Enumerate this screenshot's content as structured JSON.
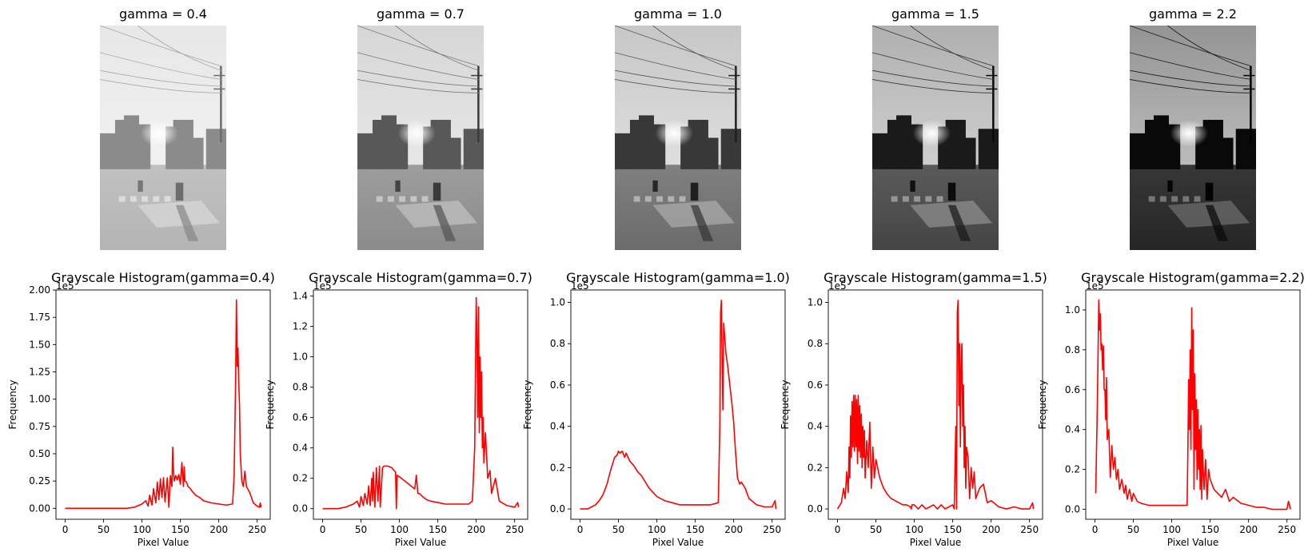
{
  "images": [
    {
      "title": "gamma = 0.4",
      "gamma": 0.4
    },
    {
      "title": "gamma = 0.7",
      "gamma": 0.7
    },
    {
      "title": "gamma = 1.0",
      "gamma": 1.0
    },
    {
      "title": "gamma = 1.5",
      "gamma": 1.5
    },
    {
      "title": "gamma = 2.2",
      "gamma": 2.2
    }
  ],
  "chart_data": [
    {
      "type": "line",
      "title": "Grayscale Histogram(gamma=0.4)",
      "xlabel": "Pixel Value",
      "ylabel": "Frequency",
      "offset_text": "1e5",
      "xlim": [
        -12,
        267
      ],
      "ylim": [
        -0.1,
        2.0
      ],
      "xticks": [
        0,
        50,
        100,
        150,
        200,
        250
      ],
      "yticks": [
        0.0,
        0.25,
        0.5,
        0.75,
        1.0,
        1.25,
        1.5,
        1.75,
        2.0
      ],
      "ytick_labels": [
        "0.00",
        "0.25",
        "0.50",
        "0.75",
        "1.00",
        "1.25",
        "1.50",
        "1.75",
        "2.00"
      ],
      "color": "#ff0000",
      "x": [
        0,
        80,
        90,
        100,
        105,
        108,
        110,
        113,
        115,
        118,
        120,
        122,
        124,
        126,
        128,
        130,
        133,
        135,
        137,
        139,
        140,
        141,
        142,
        144,
        146,
        148,
        150,
        152,
        154,
        155,
        156,
        158,
        160,
        163,
        166,
        170,
        175,
        180,
        190,
        200,
        210,
        218,
        220,
        222,
        223,
        224,
        225,
        226,
        227,
        228,
        230,
        232,
        234,
        236,
        240,
        245,
        250,
        253,
        254,
        255
      ],
      "y": [
        0.0,
        0.0,
        0.01,
        0.04,
        0.07,
        0.02,
        0.12,
        0.03,
        0.18,
        0.05,
        0.24,
        0.08,
        0.27,
        0.1,
        0.28,
        0.06,
        0.28,
        0.01,
        0.3,
        0.2,
        0.56,
        0.35,
        0.25,
        0.3,
        0.26,
        0.31,
        0.22,
        0.42,
        0.2,
        0.38,
        0.25,
        0.24,
        0.2,
        0.18,
        0.15,
        0.12,
        0.1,
        0.07,
        0.05,
        0.04,
        0.03,
        0.04,
        0.3,
        1.2,
        1.91,
        1.3,
        1.47,
        1.15,
        0.95,
        0.5,
        0.25,
        0.2,
        0.34,
        0.2,
        0.15,
        0.05,
        0.02,
        0.01,
        0.05,
        0.01
      ]
    },
    {
      "type": "line",
      "title": "Grayscale Histogram(gamma=0.7)",
      "xlabel": "Pixel Value",
      "ylabel": "Frequency",
      "offset_text": "1e5",
      "xlim": [
        -12,
        267
      ],
      "ylim": [
        -0.07,
        1.44
      ],
      "xticks": [
        0,
        50,
        100,
        150,
        200,
        250
      ],
      "yticks": [
        0.0,
        0.2,
        0.4,
        0.6,
        0.8,
        1.0,
        1.2,
        1.4
      ],
      "ytick_labels": [
        "0.0",
        "0.2",
        "0.4",
        "0.6",
        "0.8",
        "1.0",
        "1.2",
        "1.4"
      ],
      "color": "#ff0000",
      "x": [
        0,
        20,
        30,
        40,
        45,
        48,
        50,
        53,
        55,
        58,
        60,
        62,
        64,
        65,
        66,
        68,
        70,
        72,
        74,
        75,
        78,
        80,
        85,
        90,
        95,
        96,
        97,
        100,
        105,
        110,
        115,
        120,
        122,
        124,
        126,
        130,
        135,
        140,
        150,
        160,
        170,
        180,
        190,
        195,
        198,
        200,
        201,
        202,
        203,
        204,
        205,
        206,
        207,
        208,
        209,
        210,
        212,
        215,
        218,
        220,
        225,
        230,
        240,
        250,
        254,
        255
      ],
      "y": [
        0.0,
        0.0,
        0.01,
        0.03,
        0.05,
        0.01,
        0.08,
        0.02,
        0.1,
        0.03,
        0.15,
        0.02,
        0.2,
        0.05,
        0.24,
        0.01,
        0.27,
        0.05,
        0.28,
        0.01,
        0.27,
        0.28,
        0.28,
        0.27,
        0.24,
        0.0,
        0.22,
        0.21,
        0.19,
        0.17,
        0.15,
        0.13,
        0.22,
        0.1,
        0.1,
        0.08,
        0.06,
        0.05,
        0.04,
        0.03,
        0.03,
        0.03,
        0.03,
        0.05,
        0.4,
        1.39,
        1.1,
        0.6,
        1.33,
        0.5,
        1.0,
        0.6,
        0.9,
        0.4,
        0.6,
        0.3,
        0.5,
        0.2,
        0.25,
        0.1,
        0.2,
        0.05,
        0.02,
        0.01,
        0.04,
        0.01
      ]
    },
    {
      "type": "line",
      "title": "Grayscale Histogram(gamma=1.0)",
      "xlabel": "Pixel Value",
      "ylabel": "Frequency",
      "offset_text": "1e5",
      "xlim": [
        -12,
        267
      ],
      "ylim": [
        -0.05,
        1.06
      ],
      "xticks": [
        0,
        50,
        100,
        150,
        200,
        250
      ],
      "yticks": [
        0.0,
        0.2,
        0.4,
        0.6,
        0.8,
        1.0
      ],
      "ytick_labels": [
        "0.0",
        "0.2",
        "0.4",
        "0.6",
        "0.8",
        "1.0"
      ],
      "color": "#ff0000",
      "x": [
        0,
        10,
        15,
        20,
        25,
        30,
        35,
        40,
        45,
        48,
        50,
        52,
        55,
        58,
        60,
        65,
        70,
        75,
        80,
        90,
        100,
        110,
        120,
        130,
        140,
        150,
        160,
        170,
        180,
        182,
        183,
        184,
        185,
        186,
        187,
        188,
        189,
        190,
        192,
        195,
        198,
        200,
        202,
        205,
        208,
        210,
        215,
        220,
        230,
        240,
        250,
        254,
        255
      ],
      "y": [
        0.0,
        0.0,
        0.01,
        0.02,
        0.04,
        0.07,
        0.12,
        0.19,
        0.25,
        0.26,
        0.28,
        0.27,
        0.28,
        0.25,
        0.27,
        0.23,
        0.21,
        0.18,
        0.16,
        0.1,
        0.06,
        0.04,
        0.03,
        0.02,
        0.02,
        0.02,
        0.02,
        0.02,
        0.03,
        0.4,
        0.95,
        1.01,
        0.7,
        0.48,
        0.9,
        0.85,
        0.8,
        0.75,
        0.7,
        0.6,
        0.5,
        0.42,
        0.3,
        0.15,
        0.12,
        0.13,
        0.1,
        0.05,
        0.02,
        0.01,
        0.01,
        0.04,
        0.0
      ]
    },
    {
      "type": "line",
      "title": "Grayscale Histogram(gamma=1.5)",
      "xlabel": "Pixel Value",
      "ylabel": "Frequency",
      "offset_text": "1e5",
      "xlim": [
        -12,
        267
      ],
      "ylim": [
        -0.05,
        1.06
      ],
      "xticks": [
        0,
        50,
        100,
        150,
        200,
        250
      ],
      "yticks": [
        0.0,
        0.2,
        0.4,
        0.6,
        0.8,
        1.0
      ],
      "ytick_labels": [
        "0.0",
        "0.2",
        "0.4",
        "0.6",
        "0.8",
        "1.0"
      ],
      "color": "#ff0000",
      "x": [
        0,
        5,
        8,
        10,
        12,
        14,
        15,
        16,
        17,
        18,
        19,
        20,
        21,
        22,
        23,
        24,
        25,
        26,
        27,
        28,
        29,
        30,
        31,
        32,
        33,
        34,
        35,
        36,
        38,
        40,
        42,
        44,
        46,
        48,
        50,
        55,
        60,
        65,
        70,
        75,
        80,
        85,
        90,
        95,
        96,
        97,
        100,
        105,
        110,
        115,
        120,
        125,
        130,
        135,
        140,
        145,
        150,
        152,
        154,
        155,
        156,
        157,
        158,
        159,
        160,
        161,
        162,
        163,
        164,
        165,
        166,
        167,
        168,
        170,
        172,
        174,
        176,
        178,
        180,
        185,
        190,
        195,
        200,
        210,
        220,
        230,
        240,
        250,
        254,
        255
      ],
      "y": [
        0.0,
        0.03,
        0.1,
        0.05,
        0.18,
        0.08,
        0.3,
        0.15,
        0.45,
        0.25,
        0.52,
        0.3,
        0.55,
        0.28,
        0.55,
        0.3,
        0.53,
        0.22,
        0.55,
        0.28,
        0.5,
        0.25,
        0.46,
        0.2,
        0.4,
        0.25,
        0.38,
        0.15,
        0.33,
        0.2,
        0.42,
        0.1,
        0.3,
        0.15,
        0.24,
        0.15,
        0.1,
        0.07,
        0.05,
        0.04,
        0.03,
        0.02,
        0.02,
        0.01,
        0.0,
        0.02,
        0.02,
        0.0,
        0.02,
        0.0,
        0.01,
        0.02,
        0.0,
        0.02,
        0.0,
        0.01,
        0.02,
        0.0,
        0.4,
        0.0,
        0.95,
        1.01,
        0.5,
        0.8,
        0.3,
        0.7,
        0.8,
        0.4,
        0.6,
        0.2,
        0.4,
        0.1,
        0.3,
        0.25,
        0.05,
        0.2,
        0.1,
        0.18,
        0.05,
        0.1,
        0.12,
        0.03,
        0.04,
        0.01,
        0.0,
        0.01,
        0.0,
        0.0,
        0.03,
        0.0
      ]
    },
    {
      "type": "line",
      "title": "Grayscale Histogram(gamma=2.2)",
      "xlabel": "Pixel Value",
      "ylabel": "Frequency",
      "offset_text": "1e5",
      "xlim": [
        -12,
        267
      ],
      "ylim": [
        -0.05,
        1.1
      ],
      "xticks": [
        0,
        50,
        100,
        150,
        200,
        250
      ],
      "yticks": [
        0.0,
        0.2,
        0.4,
        0.6,
        0.8,
        1.0
      ],
      "ytick_labels": [
        "0.0",
        "0.2",
        "0.4",
        "0.6",
        "0.8",
        "1.0"
      ],
      "color": "#ff0000",
      "x": [
        1,
        3,
        5,
        6,
        7,
        8,
        9,
        10,
        11,
        12,
        13,
        14,
        15,
        16,
        18,
        20,
        22,
        24,
        26,
        28,
        30,
        32,
        35,
        38,
        40,
        42,
        45,
        48,
        50,
        55,
        60,
        70,
        80,
        90,
        100,
        110,
        120,
        121,
        122,
        123,
        124,
        125,
        126,
        127,
        128,
        129,
        130,
        131,
        132,
        133,
        134,
        135,
        136,
        137,
        138,
        139,
        140,
        142,
        144,
        146,
        148,
        150,
        155,
        160,
        165,
        170,
        175,
        180,
        190,
        200,
        210,
        220,
        230,
        240,
        250,
        252,
        254,
        255
      ],
      "y": [
        0.08,
        0.5,
        1.05,
        0.9,
        0.98,
        0.8,
        0.83,
        0.7,
        0.82,
        0.6,
        0.6,
        0.45,
        0.66,
        0.35,
        0.4,
        0.16,
        0.32,
        0.2,
        0.26,
        0.15,
        0.2,
        0.1,
        0.15,
        0.08,
        0.12,
        0.05,
        0.1,
        0.04,
        0.08,
        0.04,
        0.03,
        0.02,
        0.02,
        0.02,
        0.02,
        0.02,
        0.02,
        0.3,
        0.65,
        0.4,
        0.8,
        0.3,
        1.01,
        0.5,
        0.9,
        0.1,
        0.68,
        0.3,
        0.55,
        0.15,
        0.5,
        0.2,
        0.4,
        0.1,
        0.42,
        0.05,
        0.3,
        0.1,
        0.25,
        0.05,
        0.2,
        0.15,
        0.1,
        0.08,
        0.06,
        0.1,
        0.04,
        0.06,
        0.03,
        0.02,
        0.01,
        0.01,
        0.0,
        0.0,
        0.0,
        0.04,
        0.01,
        0.0
      ]
    }
  ]
}
